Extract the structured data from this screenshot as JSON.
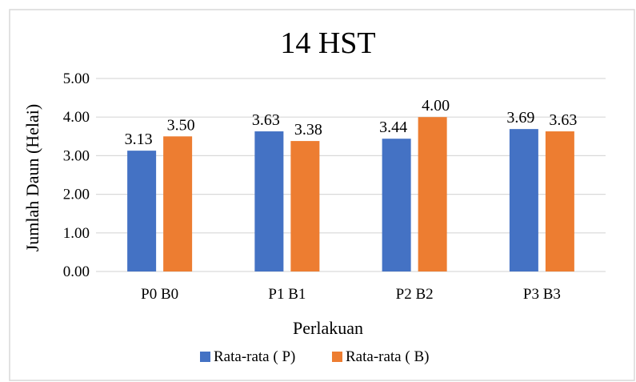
{
  "chart_data": {
    "type": "bar",
    "title": "14 HST",
    "xlabel": "Perlakuan",
    "ylabel": "Jumlah Daun (Helai)",
    "categories": [
      "P0 B0",
      "P1 B1",
      "P2 B2",
      "P3 B3"
    ],
    "series": [
      {
        "name": "Rata-rata ( P)",
        "values": [
          3.13,
          3.63,
          3.44,
          3.69
        ],
        "labels": [
          "3.13",
          "3.63",
          "3.44",
          "3.69"
        ],
        "color": "#4472C4"
      },
      {
        "name": "Rata-rata ( B)",
        "values": [
          3.5,
          3.38,
          4.0,
          3.63
        ],
        "labels": [
          "3.50",
          "3.38",
          "4.00",
          "3.63"
        ],
        "color": "#ED7D31"
      }
    ],
    "ylim": [
      0,
      5
    ],
    "yticks": [
      "0.00",
      "1.00",
      "2.00",
      "3.00",
      "4.00",
      "5.00"
    ],
    "grid": true,
    "legend": "bottom"
  },
  "colors": {
    "gridline": "#D9D9D9",
    "frame": "#D9D9D9"
  }
}
